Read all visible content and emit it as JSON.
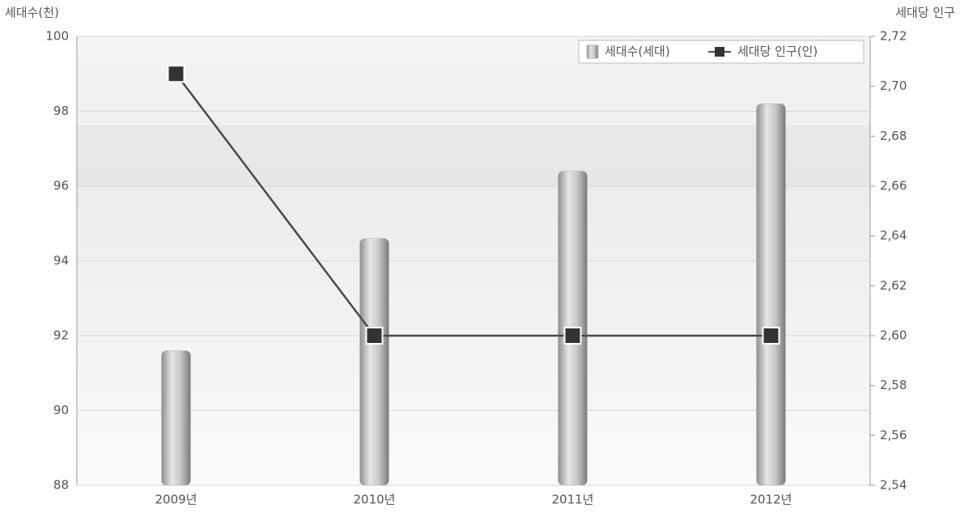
{
  "chart_data": {
    "type": "bar",
    "y_label": "세대수(천)",
    "y2_label": "세대당 인구",
    "categories": [
      "2009년",
      "2010년",
      "2011년",
      "2012년"
    ],
    "series": [
      {
        "name": "세대수(세대)",
        "type": "bar",
        "color": "#b4b4b4",
        "values": [
          91.6,
          94.6,
          96.4,
          98.2
        ]
      },
      {
        "name": "세대당 인구(인)",
        "type": "line",
        "axis": "y2",
        "color": "#4a4a4a",
        "values": [
          2.705,
          2.6,
          2.6,
          2.6
        ]
      }
    ],
    "ylim": [
      88,
      100
    ],
    "yticks": [
      88,
      90,
      92,
      94,
      96,
      98,
      100
    ],
    "y2lim": [
      2.54,
      2.72
    ],
    "y2ticks": [
      {
        "value": 2.54,
        "label": "2,54"
      },
      {
        "value": 2.56,
        "label": "2,56"
      },
      {
        "value": 2.58,
        "label": "2,58"
      },
      {
        "value": 2.6,
        "label": "2,60"
      },
      {
        "value": 2.62,
        "label": "2,62"
      },
      {
        "value": 2.64,
        "label": "2,64"
      },
      {
        "value": 2.66,
        "label": "2,66"
      },
      {
        "value": 2.68,
        "label": "2,68"
      },
      {
        "value": 2.7,
        "label": "2,70"
      },
      {
        "value": 2.72,
        "label": "2,72"
      }
    ],
    "grid": true,
    "legend": "upper right"
  }
}
